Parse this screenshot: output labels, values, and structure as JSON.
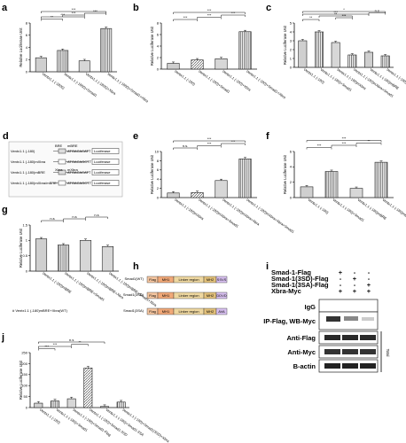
{
  "figure": {
    "colors": {
      "bar_fill": "#d0d0d0",
      "bar_stroke": "#222",
      "hatch": "#555",
      "frame": "#111"
    },
    "panels": [
      {
        "label": "a",
        "ylabel": "Relative Luciferase Unit",
        "ylim": [
          0,
          8
        ],
        "ticks": [
          0,
          2,
          4,
          6,
          8
        ],
        "categories": [
          "Ventx1.1 (-1800)",
          "Ventx1.1 (-1800)+Smad1",
          "Ventx1.1 (-1800)+Xbra",
          "Ventx1.1 (-1800)+Smad1+Xbra"
        ],
        "values": [
          2.3,
          3.5,
          1.8,
          7.1
        ],
        "sig": [
          "**",
          "***",
          "***",
          "***",
          "***"
        ]
      },
      {
        "label": "b",
        "ylabel": "Relative Luciferase Unit",
        "ylim": [
          0,
          8
        ],
        "ticks": [
          0,
          2,
          4,
          6,
          8
        ],
        "categories": [
          "Ventx1.1 (-180)",
          "Ventx1.1 (-180)+Smad1",
          "Ventx1.1 (-180)+Xbra",
          "Ventx1.1 (-180)+Smad1+Xbra"
        ],
        "values": [
          1.0,
          1.6,
          1.8,
          6.5
        ],
        "sig": [
          "***",
          "***",
          "***",
          "***"
        ]
      },
      {
        "label": "c",
        "ylabel": "Relative Luciferase Unit",
        "ylim": [
          0,
          5
        ],
        "ticks": [
          0,
          1,
          2,
          3,
          4,
          5
        ],
        "categories": [
          "Ventx1.1 (-180)",
          "Ventx1.1 (-180)+Smad1",
          "Ventx1.1 (-180)mXbra",
          "Ventx1.1 (-180)mXbra+Smad1",
          "Ventx1.1 (-180)mBRE",
          "Ventx1.1 (-180)mBRE+Smad1"
        ],
        "values": [
          3.0,
          4.0,
          2.8,
          1.4,
          1.7,
          1.3
        ],
        "sig": [
          "**",
          "***",
          "**",
          "***",
          "n.s",
          "*"
        ]
      },
      {
        "label": "e",
        "ylabel": "Relative Luciferase Unit",
        "ylim": [
          0,
          10
        ],
        "ticks": [
          0,
          2,
          4,
          6,
          8,
          10
        ],
        "categories": [
          "Ventx1.1 (-180)mXbra",
          "Ventx1.1 (-180)mXbra+Smad1",
          "Ventx1.1 (-180)mXbra+Xbra",
          "Ventx1.1 (-180)mXbra+Xbra+Smad1"
        ],
        "values": [
          1.0,
          1.1,
          3.7,
          8.4
        ],
        "sig": [
          "n.s.",
          "***",
          "***",
          "***"
        ]
      },
      {
        "label": "f",
        "ylabel": "Relative Luciferase Unit",
        "ylim": [
          0,
          6
        ],
        "ticks": [
          0,
          2,
          4,
          6
        ],
        "categories": [
          "Ventx1.1 (-180)",
          "Ventx1.1 (-180)+Smad1",
          "Ventx1.1 (-180)mBRE",
          "Ventx1.1 (-180)mBRE+Smad1"
        ],
        "values": [
          1.4,
          3.4,
          1.2,
          4.6
        ],
        "sig": [
          "***",
          "***",
          "**",
          "***"
        ]
      },
      {
        "label": "g",
        "ylabel": "Relative Luciferase Unit",
        "ylim": [
          0,
          1.5
        ],
        "ticks": [
          0,
          0.5,
          1,
          1.5
        ],
        "categories": [
          "Ventx1.1 (-180)mBRE",
          "Ventx1.1 (-180)mBRE+Smad1",
          "Ventx1.1 (-180)mBRE+Xbra",
          "Ventx1.1 (-180)mBRE+Smad1+Xbra"
        ],
        "values": [
          1.05,
          0.85,
          1.0,
          0.8
        ],
        "sig": [
          "n.s",
          "n.s",
          "n.s"
        ],
        "footnote": "# Ventx1.1 (-180)mBRE+Xbra(WT)"
      },
      {
        "label": "j",
        "ylabel": "Relative Luciferase Unit",
        "ylim": [
          0,
          250
        ],
        "ticks": [
          0,
          50,
          100,
          150,
          200,
          250
        ],
        "categories": [
          "Ventx1.1 (-180)",
          "Ventx1.1 (-180)+Smad1",
          "Ventx1.1 (-180)+Smad1-Flag",
          "Ventx1.1 (-180)+Smad1-3SD",
          "Ventx1.1 (-180)+Smad1-3SA",
          "Ventx1.1 (-180)+Smad1(3SD)+Xbra"
        ],
        "values": [
          20,
          30,
          40,
          180,
          5,
          25
        ],
        "sig": [
          "***",
          "***",
          "**",
          "n.s"
        ]
      }
    ],
    "panel_d": {
      "label": "d",
      "rows": [
        {
          "name": "Ventx1.1 (-180)",
          "seq": "ATGACACATT",
          "tag": "Luciferase"
        },
        {
          "name": "Ventx1.1 (-180)mXbra",
          "seq": "ATGACAGCTT",
          "tag": "Luciferase"
        },
        {
          "name": "Ventx1.1 (-180)mBRE",
          "seq": "ATGACACATT",
          "tag": "Luciferase"
        },
        {
          "name": "Ventx1.1 (-180)mXbra/mBRE",
          "seq": "ATGACAGCTT",
          "tag": "Luciferase"
        }
      ],
      "markers": [
        "BRE",
        "mBRE",
        "Xbra",
        "mXbra"
      ]
    },
    "panel_h": {
      "label": "h",
      "constructs": [
        {
          "name": "Smad1(WT)",
          "domains": [
            "Flag",
            "MH1",
            "Linker region",
            "MH2",
            "SSVS"
          ]
        },
        {
          "name": "Smad1(3SD)",
          "domains": [
            "Flag",
            "MH1",
            "Linker region",
            "MH2",
            "DDVD"
          ]
        },
        {
          "name": "Smad1(3SA)",
          "domains": [
            "Flag",
            "MH1",
            "Linker region",
            "MH2",
            "AVA"
          ]
        }
      ]
    },
    "panel_i": {
      "label": "i",
      "conditions": [
        {
          "name": "Smad-1-Flag",
          "marks": [
            "+",
            "-",
            "-"
          ]
        },
        {
          "name": "Smad-1(3SD)-Flag",
          "marks": [
            "-",
            "+",
            "-"
          ]
        },
        {
          "name": "Smad-1(3SA)-Flag",
          "marks": [
            "-",
            "-",
            "+"
          ]
        },
        {
          "name": "Xbra-Myc",
          "marks": [
            "+",
            "+",
            "+"
          ]
        }
      ],
      "blots": [
        "IgG",
        "IP-Flag, WB-Myc",
        "Anti-Flag",
        "Anti-Myc",
        "B-actin"
      ],
      "side_label": "Total"
    }
  }
}
